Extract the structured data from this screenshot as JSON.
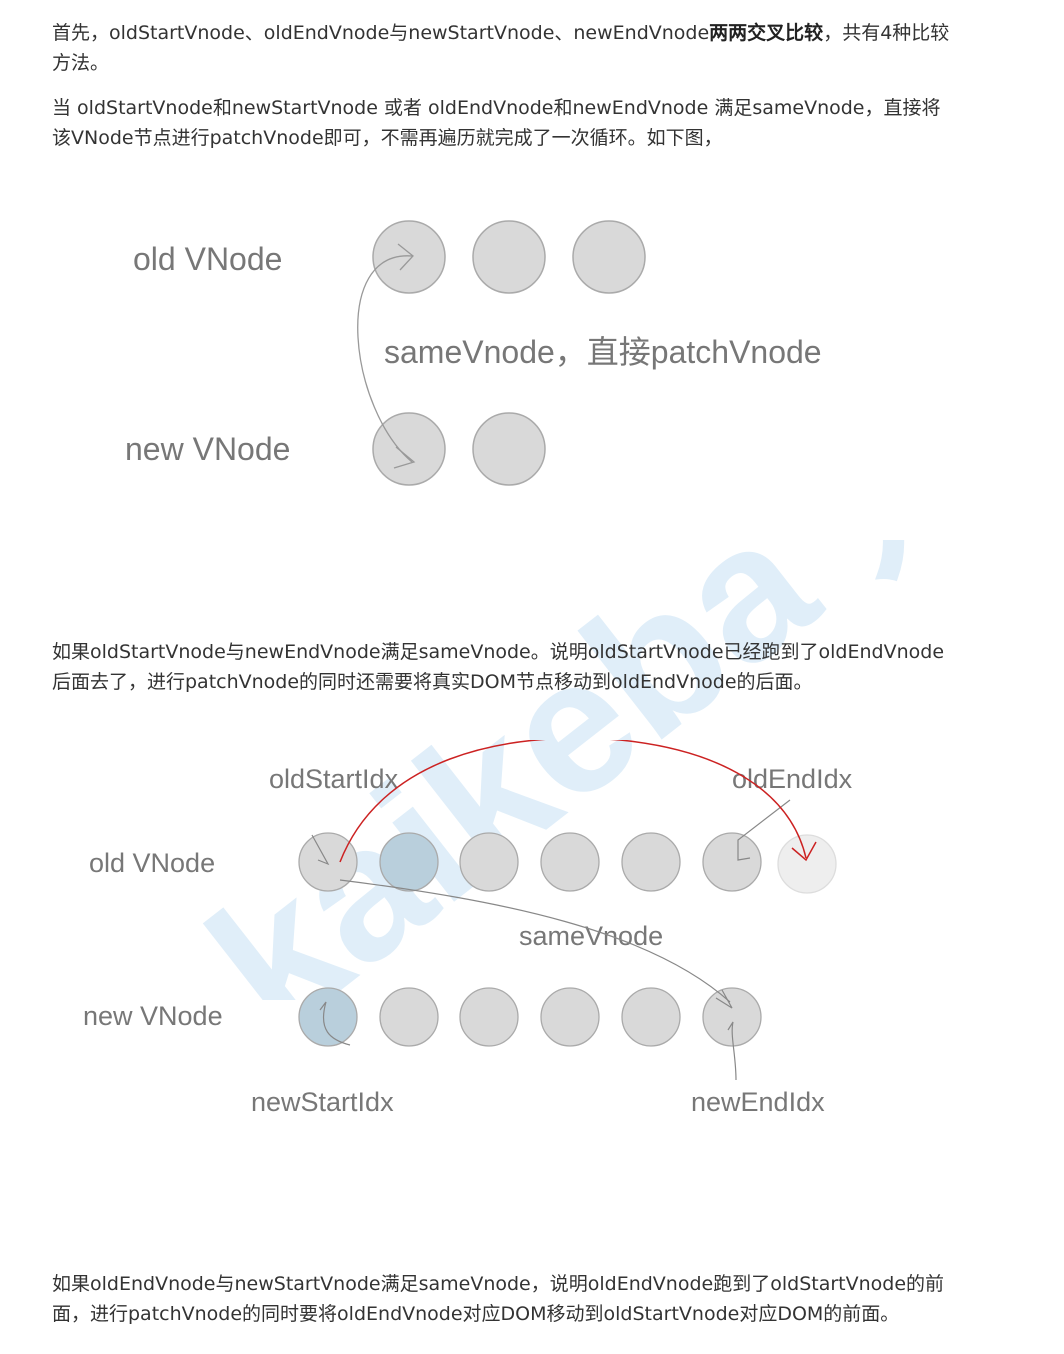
{
  "paragraph1": {
    "pre": "首先，oldStartVnode、oldEndVnode与newStartVnode、newEndVnode",
    "bold": "两两交叉比较",
    "post": "，共有4种比较方法。"
  },
  "paragraph2": "当 oldStartVnode和newStartVnode 或者 oldEndVnode和newEndVnode 满足sameVnode，直接将该VNode节点进行patchVnode即可，不需再遍历就完成了一次循环。如下图，",
  "diagram1": {
    "old_label": "old VNode",
    "new_label": "new VNode",
    "caption": "sameVnode，直接patchVnode"
  },
  "paragraph3": "如果oldStartVnode与newEndVnode满足sameVnode。说明oldStartVnode已经跑到了oldEndVnode后面去了，进行patchVnode的同时还需要将真实DOM节点移动到oldEndVnode的后面。",
  "diagram2": {
    "old_label": "old VNode",
    "new_label": "new VNode",
    "old_start_idx": "oldStartIdx",
    "old_end_idx": "oldEndIdx",
    "new_start_idx": "newStartIdx",
    "new_end_idx": "newEndIdx",
    "same_label": "sameVnode"
  },
  "watermark": "kaikeba 开课吧",
  "paragraph4": "如果oldEndVnode与newStartVnode满足sameVnode，说明oldEndVnode跑到了oldStartVnode的前面，进行patchVnode的同时要将oldEndVnode对应DOM移动到oldStartVnode对应DOM的前面。",
  "colors": {
    "node_fill": "#d9d9d9",
    "node_stroke": "#aaaaaa",
    "highlight_fill": "#b9cfdc",
    "red_arrow": "#cc2222",
    "watermark": "#dbecf8"
  }
}
